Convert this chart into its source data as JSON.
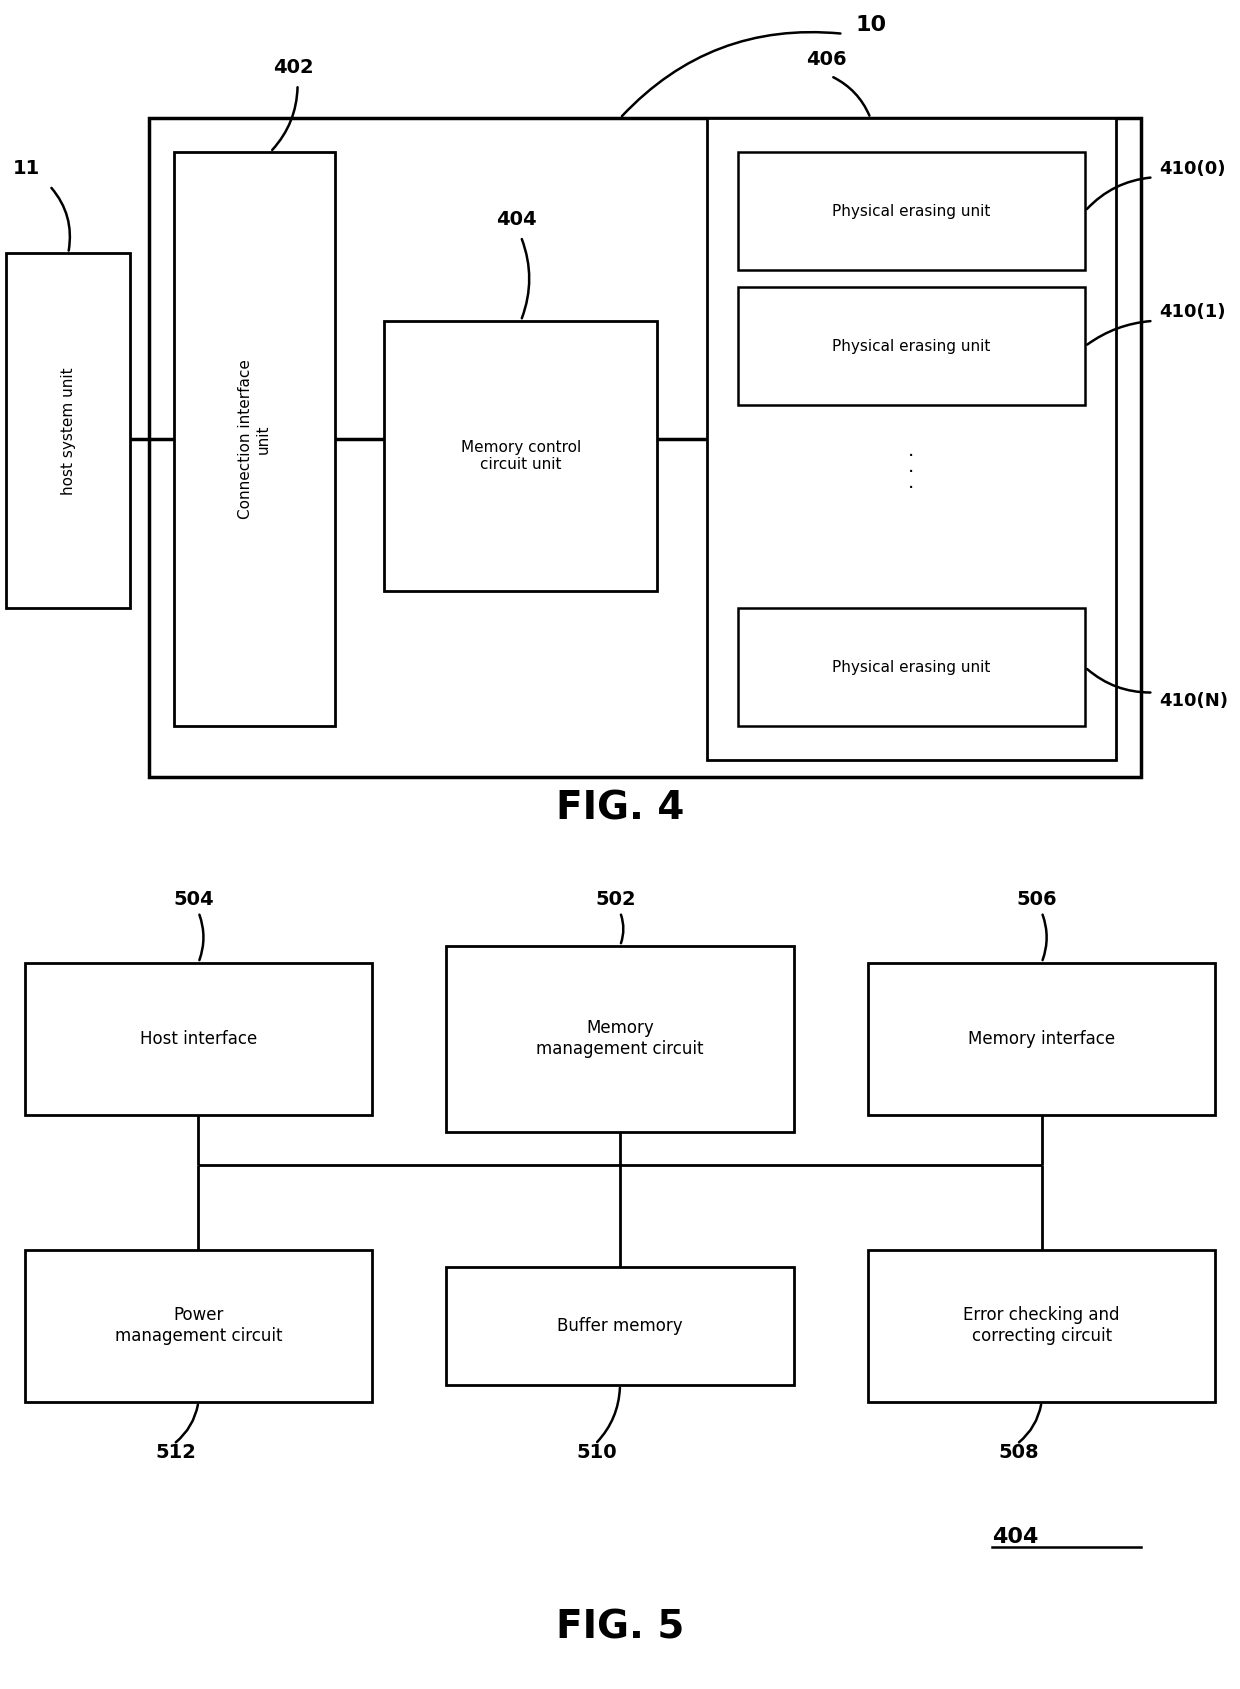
{
  "fig_width": 12.4,
  "fig_height": 16.89,
  "bg_color": "#ffffff",
  "text_color": "#000000",
  "fig4": {
    "title": "FIG. 4",
    "label_10": "10",
    "label_11": "11",
    "label_402": "402",
    "label_404": "404",
    "label_406": "406",
    "label_410_0": "410(0)",
    "label_410_1": "410(1)",
    "label_410_N": "410(N)",
    "host_text": "host system unit",
    "conn_text": "Connection interface\nunit",
    "mem_ctrl_text": "Memory control\ncircuit unit",
    "phys_erase_0": "Physical erasing unit",
    "phys_erase_1": "Physical erasing unit",
    "phys_erase_N": "Physical erasing unit",
    "dots": "·\n·\n·"
  },
  "fig5": {
    "title": "FIG. 5",
    "label_404": "404",
    "label_502": "502",
    "label_504": "504",
    "label_506": "506",
    "label_508": "508",
    "label_510": "510",
    "label_512": "512",
    "host_interface": "Host interface",
    "mem_mgmt": "Memory\nmanagement circuit",
    "mem_interface": "Memory interface",
    "power_mgmt": "Power\nmanagement circuit",
    "buffer_mem": "Buffer memory",
    "error_check": "Error checking and\ncorrecting circuit"
  }
}
